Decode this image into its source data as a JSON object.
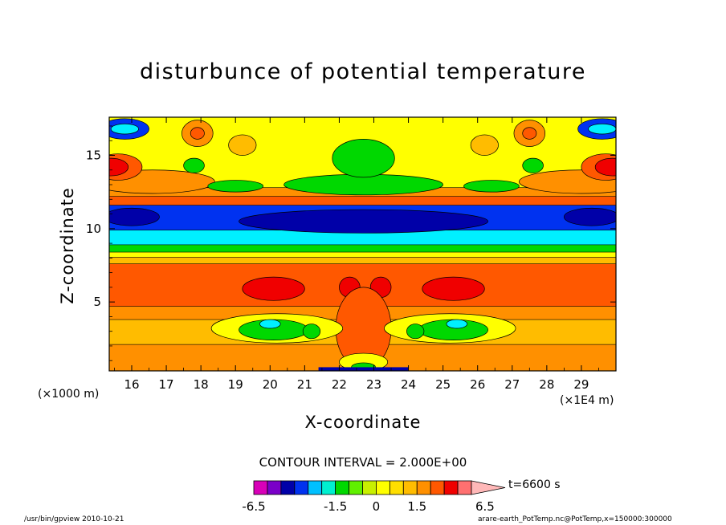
{
  "chart_data": {
    "type": "heatmap",
    "title": "disturbunce of potential temperature",
    "xlabel": "X-coordinate",
    "ylabel": "Z-coordinate",
    "x_unit_left": "(×1000 m)",
    "x_unit_right": "(×1E4 m)",
    "xlim": [
      15.35,
      30.0
    ],
    "ylim": [
      0.3,
      17.6
    ],
    "x_ticks": [
      16,
      17,
      18,
      19,
      20,
      21,
      22,
      23,
      24,
      25,
      26,
      27,
      28,
      29
    ],
    "x_tick_labels": [
      "16",
      "17",
      "18",
      "19",
      "20",
      "21",
      "22",
      "23",
      "24",
      "25",
      "26",
      "27",
      "28",
      "29"
    ],
    "y_ticks": [
      5,
      10,
      15
    ],
    "y_tick_labels": [
      "5",
      "10",
      "15"
    ],
    "contour_interval": "CONTOUR INTERVAL = 2.000E+00",
    "time_label": "t=6600 s",
    "colorbar": {
      "levels": [
        -6.5,
        -5.5,
        -4.5,
        -3.5,
        -2.5,
        -2.0,
        -1.5,
        -1.0,
        -0.5,
        0,
        0.5,
        1.0,
        1.5,
        2.5,
        3.5,
        4.5,
        5.5,
        6.5
      ],
      "tick_labels": [
        "-6.5",
        "-1.5",
        "0",
        "1.5",
        "6.5"
      ],
      "tick_values": [
        -6.5,
        -1.5,
        0,
        1.5,
        6.5
      ],
      "colors": [
        "#d800b8",
        "#7a00c8",
        "#0000a8",
        "#0032f0",
        "#00c0ff",
        "#00f0d0",
        "#00d800",
        "#60f000",
        "#c8f000",
        "#ffff00",
        "#ffde00",
        "#ffbc00",
        "#ff9000",
        "#ff5800",
        "#f00000",
        "#ff7070"
      ],
      "extend_color": "#ffb8b8"
    },
    "colors": {
      "deep_blue": "#0000a8",
      "blue": "#0032f0",
      "cyan": "#00f0ff",
      "green": "#00d800",
      "yellow": "#ffff00",
      "gold": "#ffbc00",
      "orange": "#ff9000",
      "dark_orange": "#ff5800",
      "red": "#f00000"
    }
  },
  "footer": {
    "left": "/usr/bin/gpview   2010-10-21",
    "right": "arare-earth_PotTemp.nc@PotTemp,x=150000:300000"
  }
}
